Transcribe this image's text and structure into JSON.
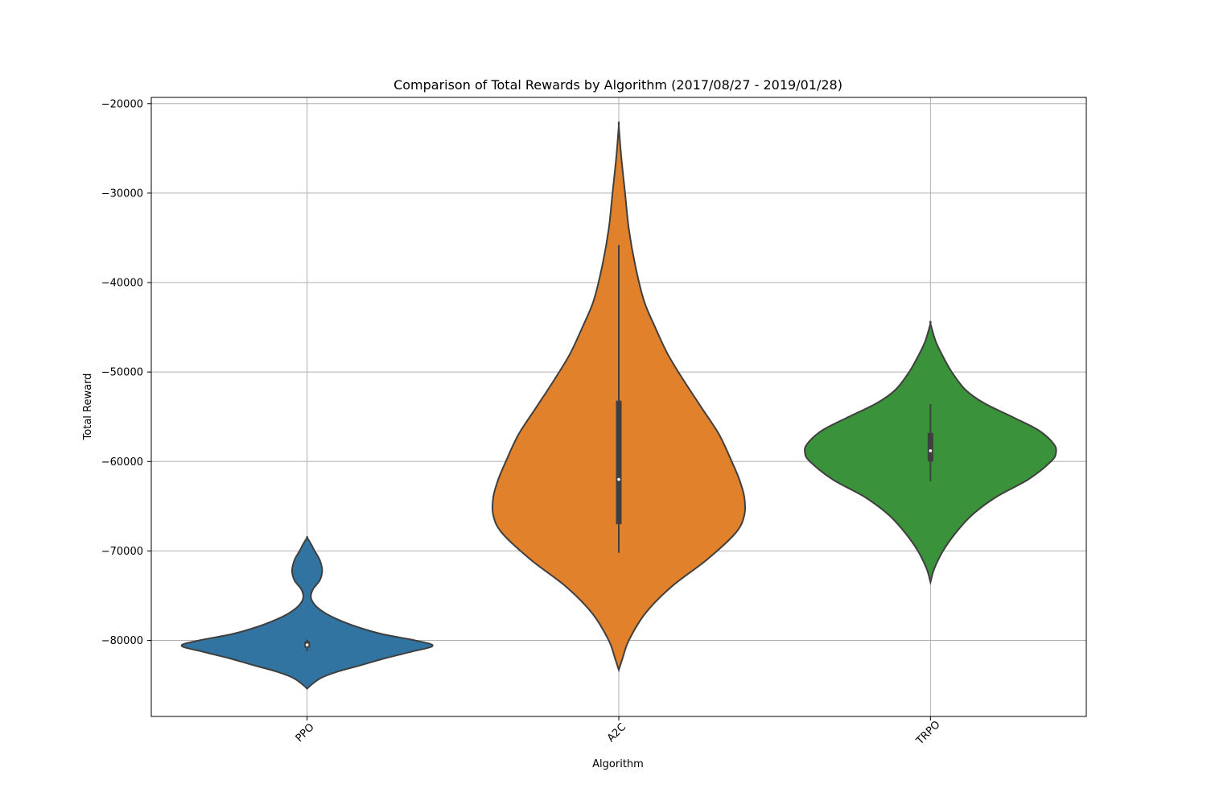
{
  "chart_data": {
    "type": "violin",
    "title": "Comparison of Total Rewards by Algorithm (2017/08/27 - 2019/01/28)",
    "xlabel": "Algorithm",
    "ylabel": "Total Reward",
    "categories": [
      "PPO",
      "A2C",
      "TRPO"
    ],
    "ylim": [
      -88500,
      -19300
    ],
    "yticks": [
      -80000,
      -70000,
      -60000,
      -50000,
      -40000,
      -30000,
      -20000
    ],
    "ytick_labels": [
      "−80000",
      "−70000",
      "−60000",
      "−50000",
      "−40000",
      "−30000",
      "−20000"
    ],
    "grid": true,
    "tick_label_rotation_deg": 45,
    "series": [
      {
        "category": "PPO",
        "color": "#3274a1",
        "min": -85400,
        "max": -68500,
        "q1": -80800,
        "median": -80500,
        "q3": -80100,
        "whisker_low": -81200,
        "whisker_high": -79900,
        "density_profile": [
          [
            -85400,
            0.0
          ],
          [
            -85000,
            0.03
          ],
          [
            -84200,
            0.11
          ],
          [
            -83500,
            0.24
          ],
          [
            -82800,
            0.42
          ],
          [
            -82000,
            0.62
          ],
          [
            -81300,
            0.82
          ],
          [
            -80600,
            1.0
          ],
          [
            -80000,
            0.86
          ],
          [
            -79300,
            0.6
          ],
          [
            -78500,
            0.4
          ],
          [
            -77700,
            0.25
          ],
          [
            -77000,
            0.15
          ],
          [
            -76300,
            0.08
          ],
          [
            -75600,
            0.04
          ],
          [
            -75000,
            0.03
          ],
          [
            -74200,
            0.05
          ],
          [
            -73300,
            0.1
          ],
          [
            -72200,
            0.12
          ],
          [
            -71000,
            0.1
          ],
          [
            -70000,
            0.06
          ],
          [
            -69200,
            0.03
          ],
          [
            -68500,
            0.0
          ]
        ]
      },
      {
        "category": "A2C",
        "color": "#e1812c",
        "min": -83300,
        "max": -22500,
        "q1": -67000,
        "median": -62000,
        "q3": -53200,
        "whisker_low": -70200,
        "whisker_high": -35800,
        "density_profile": [
          [
            -83300,
            0.0
          ],
          [
            -82000,
            0.03
          ],
          [
            -80000,
            0.08
          ],
          [
            -77000,
            0.21
          ],
          [
            -74000,
            0.42
          ],
          [
            -71000,
            0.7
          ],
          [
            -68000,
            0.93
          ],
          [
            -66000,
            1.0
          ],
          [
            -64000,
            1.0
          ],
          [
            -62000,
            0.96
          ],
          [
            -60000,
            0.9
          ],
          [
            -57000,
            0.8
          ],
          [
            -54000,
            0.66
          ],
          [
            -51000,
            0.52
          ],
          [
            -48000,
            0.39
          ],
          [
            -45000,
            0.29
          ],
          [
            -42000,
            0.2
          ],
          [
            -38000,
            0.13
          ],
          [
            -34000,
            0.08
          ],
          [
            -30000,
            0.05
          ],
          [
            -26000,
            0.02
          ],
          [
            -22500,
            0.0
          ]
        ]
      },
      {
        "category": "TRPO",
        "color": "#3a923a",
        "min": -73500,
        "max": -44600,
        "q1": -60000,
        "median": -58800,
        "q3": -56800,
        "whisker_low": -62200,
        "whisker_high": -53600,
        "density_profile": [
          [
            -73500,
            0.0
          ],
          [
            -72000,
            0.03
          ],
          [
            -70000,
            0.1
          ],
          [
            -68000,
            0.2
          ],
          [
            -66000,
            0.33
          ],
          [
            -64000,
            0.52
          ],
          [
            -62000,
            0.78
          ],
          [
            -60000,
            0.96
          ],
          [
            -59000,
            1.0
          ],
          [
            -58000,
            0.98
          ],
          [
            -56500,
            0.86
          ],
          [
            -55000,
            0.65
          ],
          [
            -53500,
            0.43
          ],
          [
            -52000,
            0.28
          ],
          [
            -50000,
            0.17
          ],
          [
            -48000,
            0.09
          ],
          [
            -46500,
            0.04
          ],
          [
            -44600,
            0.0
          ]
        ]
      }
    ]
  }
}
